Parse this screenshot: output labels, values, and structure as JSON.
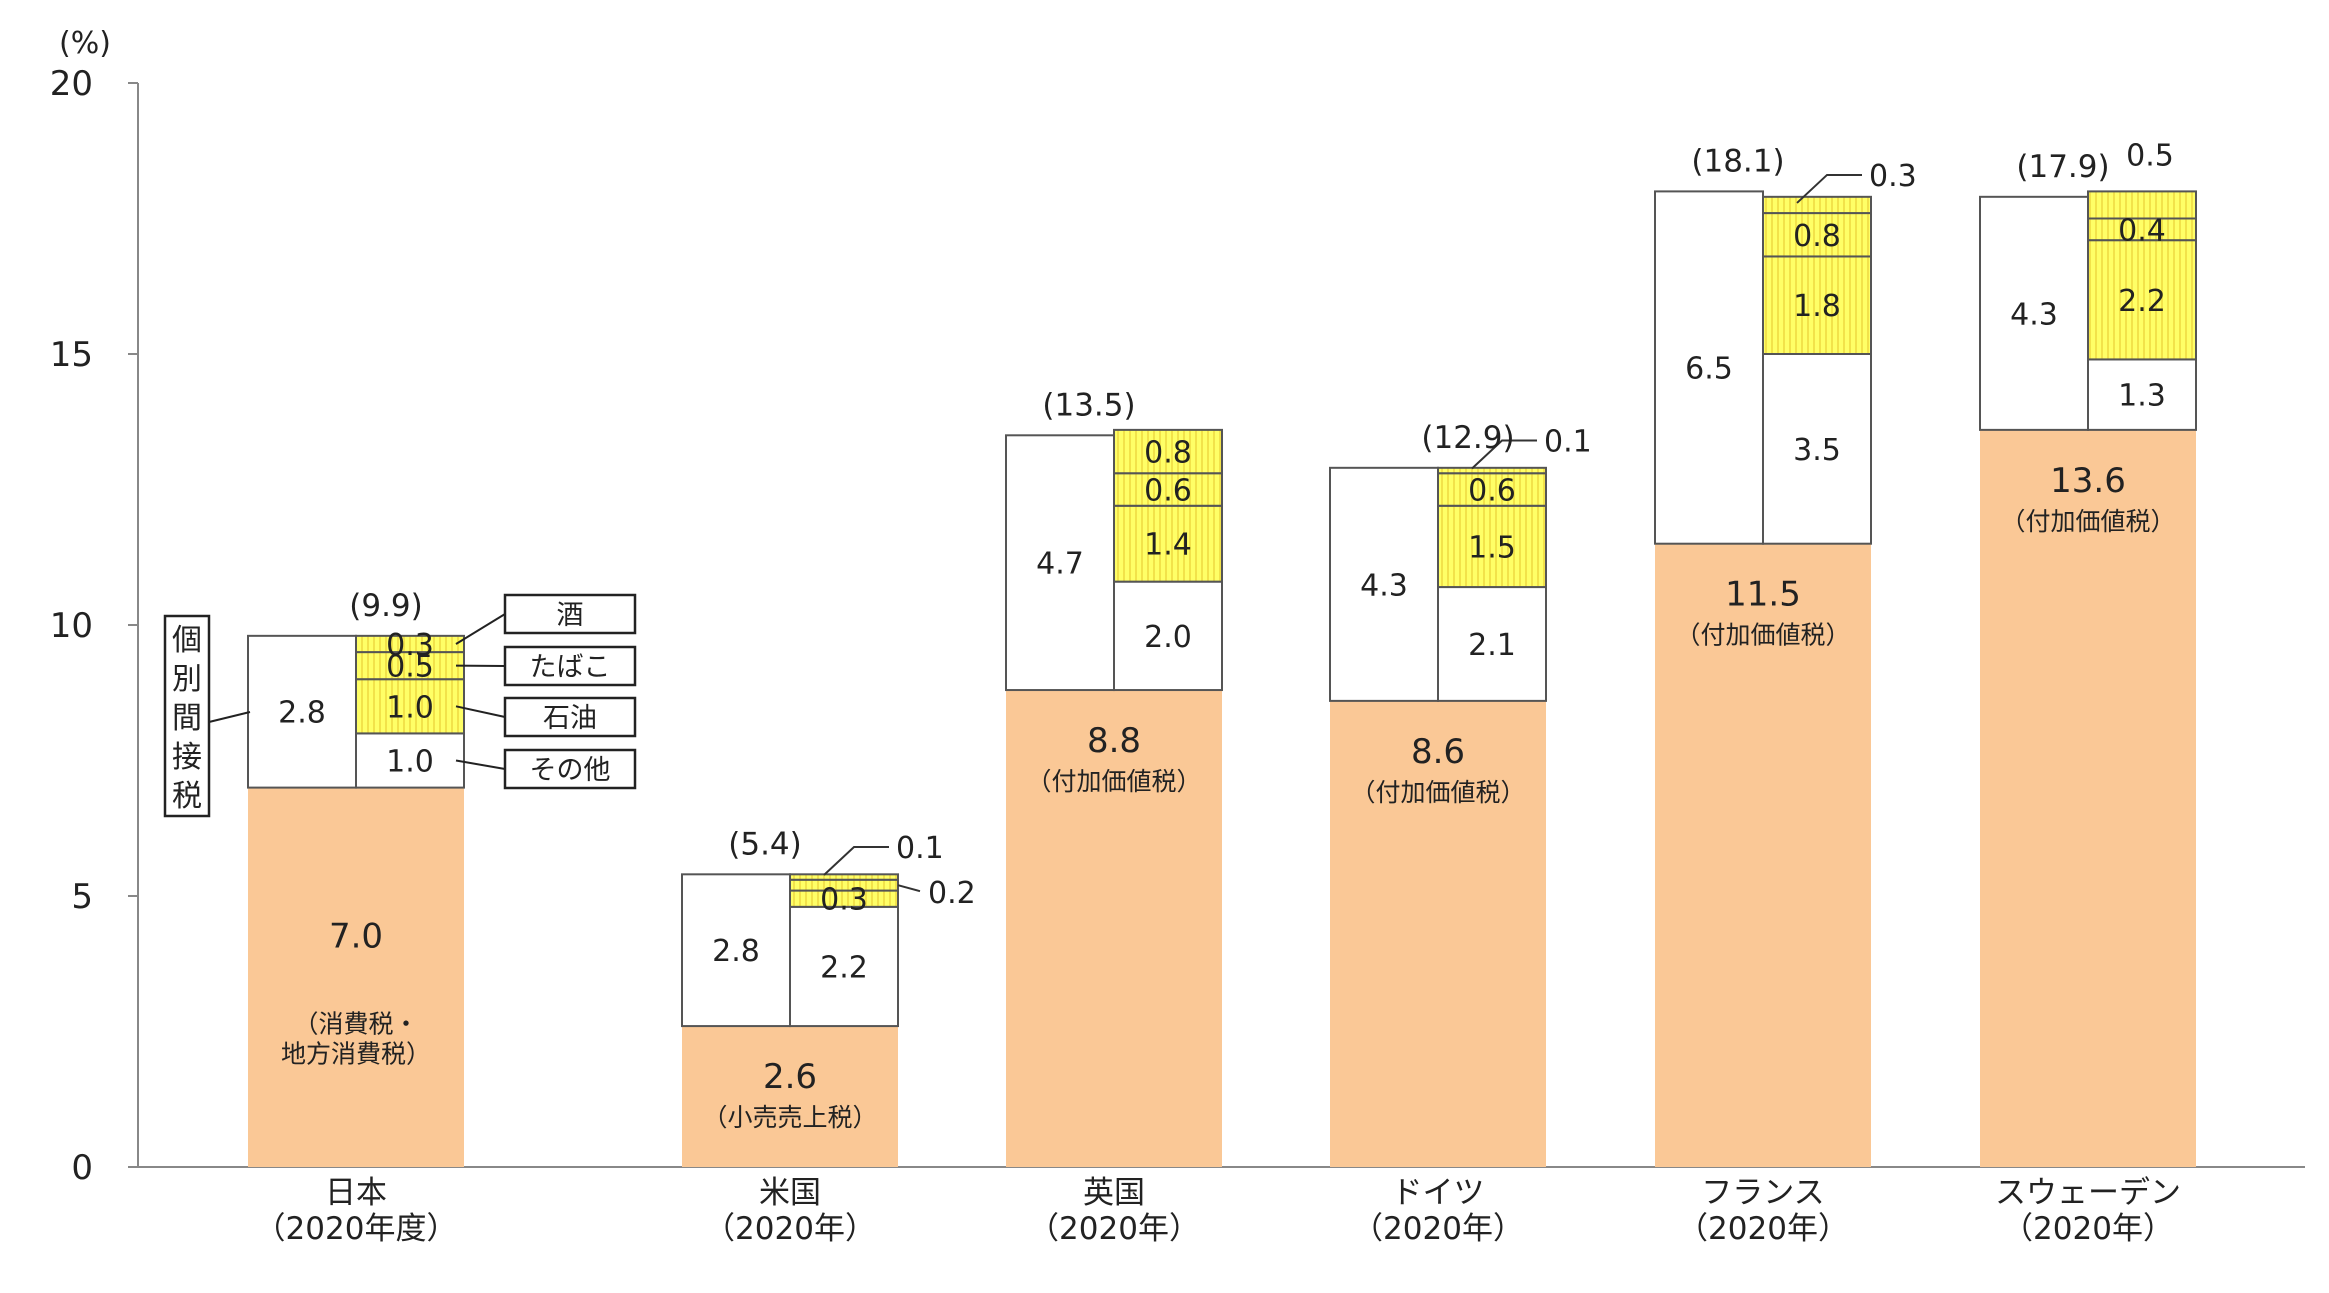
{
  "chart_data": {
    "type": "bar",
    "stacked": true,
    "y_unit": "(%)",
    "ylim": [
      0,
      20
    ],
    "yticks": [
      0,
      5,
      10,
      15,
      20
    ],
    "grid": false,
    "categories": [
      {
        "name": "日本",
        "period": "（2020年度）",
        "total_label": "(9.9)",
        "base": {
          "value": 7.0,
          "label": "7.0",
          "note_lines": [
            "（消費税・",
            "地方消費税）"
          ]
        },
        "indirect_total": {
          "value": 2.8,
          "label": "2.8"
        },
        "indirect_parts": [
          {
            "kind": "other",
            "value": 1.0,
            "label": "1.0"
          },
          {
            "kind": "oil",
            "value": 1.0,
            "label": "1.0"
          },
          {
            "kind": "tobacco",
            "value": 0.5,
            "label": "0.5"
          },
          {
            "kind": "alcohol",
            "value": 0.3,
            "label": "0.3"
          }
        ]
      },
      {
        "name": "米国",
        "period": "（2020年）",
        "total_label": "(5.4)",
        "base": {
          "value": 2.6,
          "label": "2.6",
          "note_lines": [
            "（小売売上税）"
          ]
        },
        "indirect_total": {
          "value": 2.8,
          "label": "2.8"
        },
        "indirect_parts": [
          {
            "kind": "other",
            "value": 2.2,
            "label": "2.2"
          },
          {
            "kind": "oil",
            "value": 0.3,
            "label": "0.3"
          },
          {
            "kind": "tobacco",
            "value": 0.2,
            "label": "0.2",
            "callout": "near"
          },
          {
            "kind": "alcohol",
            "value": 0.1,
            "label": "0.1",
            "callout": "far"
          }
        ]
      },
      {
        "name": "英国",
        "period": "（2020年）",
        "total_label": "(13.5)",
        "base": {
          "value": 8.8,
          "label": "8.8",
          "note_lines": [
            "（付加価値税）"
          ]
        },
        "indirect_total": {
          "value": 4.7,
          "label": "4.7"
        },
        "indirect_parts": [
          {
            "kind": "other",
            "value": 2.0,
            "label": "2.0"
          },
          {
            "kind": "oil",
            "value": 1.4,
            "label": "1.4"
          },
          {
            "kind": "tobacco",
            "value": 0.6,
            "label": "0.6"
          },
          {
            "kind": "alcohol",
            "value": 0.8,
            "label": "0.8"
          }
        ]
      },
      {
        "name": "ドイツ",
        "period": "（2020年）",
        "total_label": "(12.9)",
        "base": {
          "value": 8.6,
          "label": "8.6",
          "note_lines": [
            "（付加価値税）"
          ]
        },
        "indirect_total": {
          "value": 4.3,
          "label": "4.3"
        },
        "indirect_parts": [
          {
            "kind": "other",
            "value": 2.1,
            "label": "2.1"
          },
          {
            "kind": "oil",
            "value": 1.5,
            "label": "1.5"
          },
          {
            "kind": "tobacco",
            "value": 0.6,
            "label": "0.6"
          },
          {
            "kind": "alcohol",
            "value": 0.1,
            "label": "0.1",
            "callout": "far"
          }
        ]
      },
      {
        "name": "フランス",
        "period": "（2020年）",
        "total_label": "(18.1)",
        "base": {
          "value": 11.5,
          "label": "11.5",
          "note_lines": [
            "（付加価値税）"
          ]
        },
        "indirect_total": {
          "value": 6.5,
          "label": "6.5"
        },
        "indirect_parts": [
          {
            "kind": "other",
            "value": 3.5,
            "label": "3.5"
          },
          {
            "kind": "oil",
            "value": 1.8,
            "label": "1.8"
          },
          {
            "kind": "tobacco",
            "value": 0.8,
            "label": "0.8"
          },
          {
            "kind": "alcohol",
            "value": 0.3,
            "label": "0.3",
            "callout": "far"
          }
        ]
      },
      {
        "name": "スウェーデン",
        "period": "（2020年）",
        "total_label": "(17.9)",
        "base": {
          "value": 13.6,
          "label": "13.6",
          "note_lines": [
            "（付加価値税）"
          ]
        },
        "indirect_total": {
          "value": 4.3,
          "label": "4.3"
        },
        "indirect_parts": [
          {
            "kind": "other",
            "value": 1.3,
            "label": "1.3"
          },
          {
            "kind": "oil",
            "value": 2.2,
            "label": "2.2"
          },
          {
            "kind": "tobacco",
            "value": 0.4,
            "label": "0.4"
          },
          {
            "kind": "alcohol",
            "value": 0.5,
            "label": "0.5",
            "callout": "above"
          }
        ]
      }
    ],
    "legend": {
      "kinds": [
        "alcohol",
        "tobacco",
        "oil",
        "other"
      ],
      "labels": [
        "酒",
        "たばこ",
        "石油",
        "その他"
      ]
    },
    "indirect_tax_label": [
      "個",
      "別",
      "間",
      "接",
      "税"
    ],
    "colors": {
      "base": "#FAC896",
      "hatch_fill": "#FFFF66",
      "hatch_line": "#F2E24A",
      "plain": "#FFFFFF",
      "stroke": "#555555",
      "axis": "#888888"
    }
  }
}
